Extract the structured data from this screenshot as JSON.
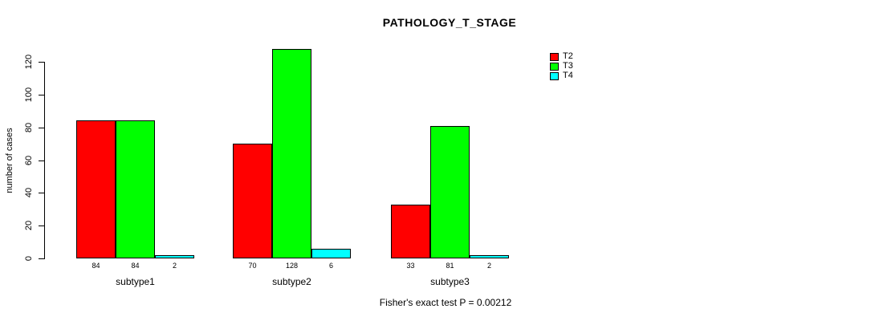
{
  "chart": {
    "title": "PATHOLOGY_T_STAGE",
    "ylabel": "number of cases",
    "footer": "Fisher's exact test P = 0.00212"
  },
  "chart_data": {
    "type": "bar",
    "title": "PATHOLOGY_T_STAGE",
    "xlabel": "",
    "ylabel": "number of cases",
    "categories": [
      "subtype1",
      "subtype2",
      "subtype3"
    ],
    "series": [
      {
        "name": "T2",
        "color": "#ff0000",
        "values": [
          84,
          70,
          33
        ]
      },
      {
        "name": "T3",
        "color": "#00ff00",
        "values": [
          84,
          128,
          81
        ]
      },
      {
        "name": "T4",
        "color": "#00ffff",
        "values": [
          2,
          6,
          2
        ]
      }
    ],
    "yticks": [
      0,
      20,
      40,
      60,
      80,
      100,
      120
    ],
    "ylim": [
      0,
      120
    ],
    "grid": false,
    "bar_value_labels_shown": true,
    "legend_position": "top-right",
    "annotation": "Fisher's exact test P = 0.00212"
  }
}
